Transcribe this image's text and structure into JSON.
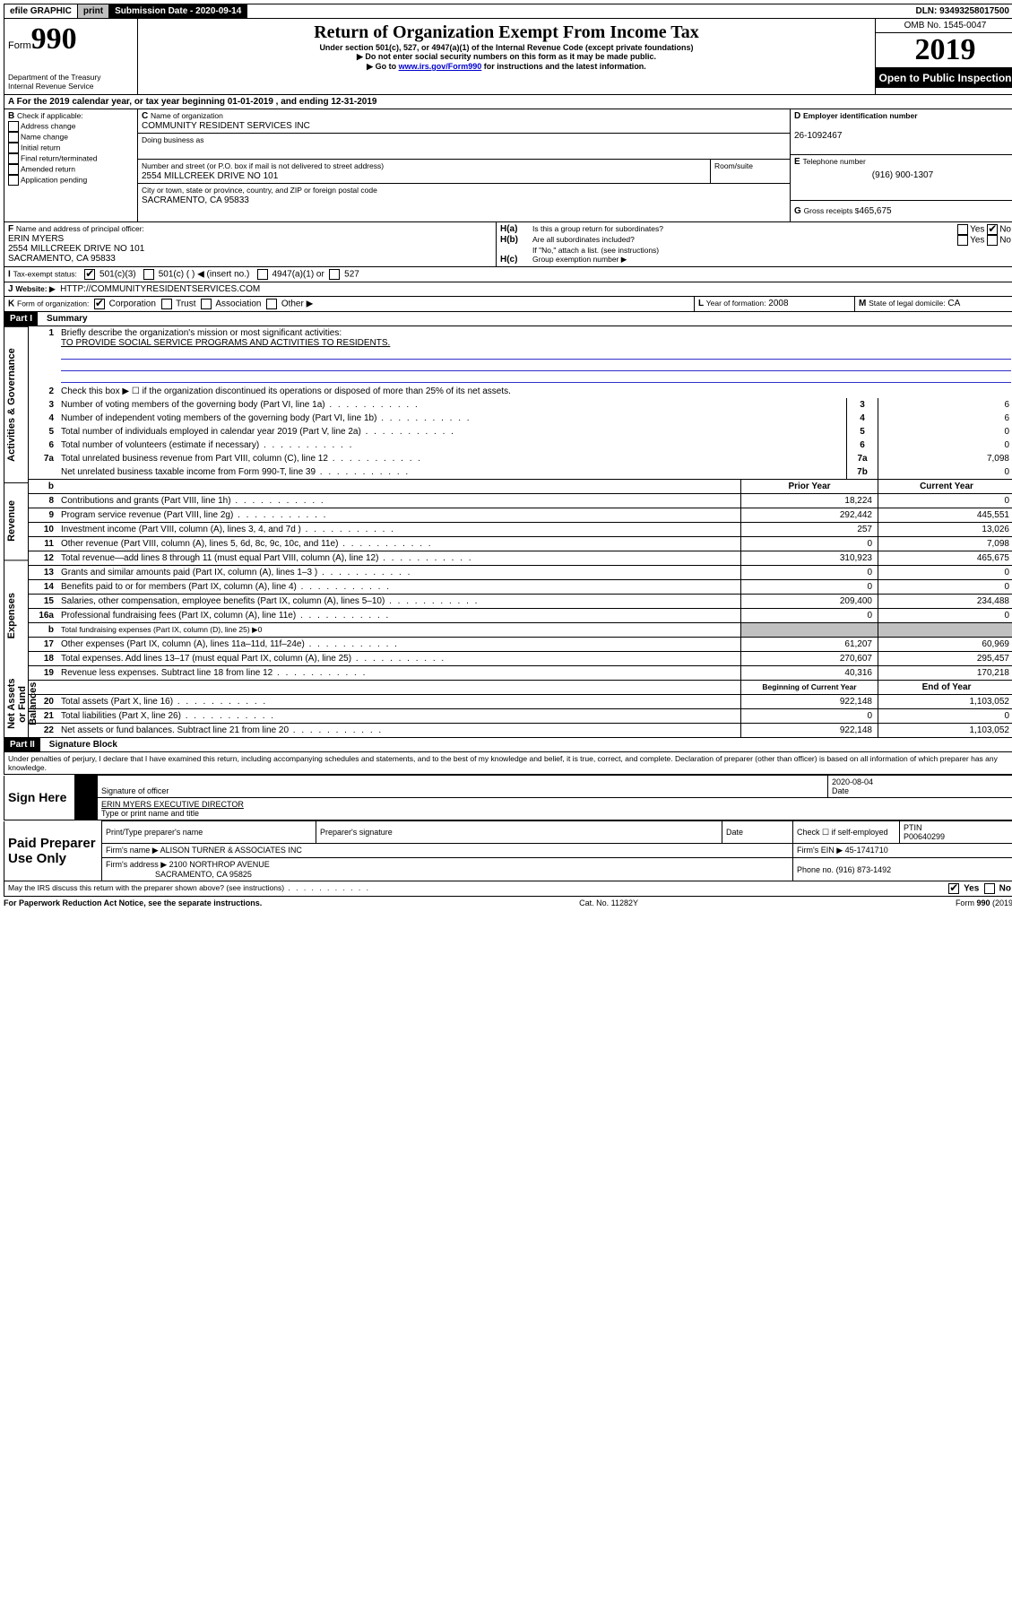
{
  "topbar": {
    "efile": "efile GRAPHIC",
    "print": "print",
    "subdate_label": "Submission Date - 2020-09-14",
    "dln": "DLN: 93493258017500"
  },
  "header": {
    "form_word": "Form",
    "form_num": "990",
    "dept": "Department of the Treasury",
    "irs": "Internal Revenue Service",
    "title": "Return of Organization Exempt From Income Tax",
    "sub1": "Under section 501(c), 527, or 4947(a)(1) of the Internal Revenue Code (except private foundations)",
    "sub2": "▶ Do not enter social security numbers on this form as it may be made public.",
    "sub3a": "▶ Go to ",
    "sub3_link": "www.irs.gov/Form990",
    "sub3b": " for instructions and the latest information.",
    "omb": "OMB No. 1545-0047",
    "year": "2019",
    "open": "Open to Public Inspection"
  },
  "period": {
    "line": "For the 2019 calendar year, or tax year beginning 01-01-2019   , and ending 12-31-2019"
  },
  "B": {
    "label": "Check if applicable:",
    "opts": [
      "Address change",
      "Name change",
      "Initial return",
      "Final return/terminated",
      "Amended return",
      "Application pending"
    ]
  },
  "C": {
    "name_label": "Name of organization",
    "name": "COMMUNITY RESIDENT SERVICES INC",
    "dba_label": "Doing business as",
    "addr_label": "Number and street (or P.O. box if mail is not delivered to street address)",
    "room_label": "Room/suite",
    "addr": "2554 MILLCREEK DRIVE NO 101",
    "city_label": "City or town, state or province, country, and ZIP or foreign postal code",
    "city": "SACRAMENTO, CA  95833"
  },
  "D": {
    "label": "Employer identification number",
    "val": "26-1092467"
  },
  "E": {
    "label": "Telephone number",
    "val": "(916) 900-1307"
  },
  "G": {
    "label": "Gross receipts $",
    "val": "465,675"
  },
  "F": {
    "label": "Name and address of principal officer:",
    "name": "ERIN MYERS",
    "addr1": "2554 MILLCREEK DRIVE NO 101",
    "addr2": "SACRAMENTO, CA  95833"
  },
  "H": {
    "a": "Is this a group return for subordinates?",
    "b": "Are all subordinates included?",
    "b2": "If \"No,\" attach a list. (see instructions)",
    "c": "Group exemption number ▶",
    "yes": "Yes",
    "no": "No"
  },
  "I": {
    "label": "Tax-exempt status:",
    "c1": "501(c)(3)",
    "c2": "501(c) (   ) ◀ (insert no.)",
    "c3": "4947(a)(1) or",
    "c4": "527"
  },
  "J": {
    "label": "Website: ▶",
    "val": "HTTP://COMMUNITYRESIDENTSERVICES.COM"
  },
  "K": {
    "label": "Form of organization:",
    "c1": "Corporation",
    "c2": "Trust",
    "c3": "Association",
    "c4": "Other ▶"
  },
  "L": {
    "label": "Year of formation:",
    "val": "2008"
  },
  "M": {
    "label": "State of legal domicile:",
    "val": "CA"
  },
  "part1": {
    "hdr": "Part I",
    "title": "Summary",
    "vlabels": [
      "Activities & Governance",
      "Revenue",
      "Expenses",
      "Net Assets or Fund Balances"
    ],
    "l1": "Briefly describe the organization's mission or most significant activities:",
    "l1v": "TO PROVIDE SOCIAL SERVICE PROGRAMS AND ACTIVITIES TO RESIDENTS.",
    "l2": "Check this box ▶ ☐  if the organization discontinued its operations or disposed of more than 25% of its net assets.",
    "rows_gov": [
      {
        "n": "3",
        "d": "Number of voting members of the governing body (Part VI, line 1a)",
        "b": "3",
        "v": "6"
      },
      {
        "n": "4",
        "d": "Number of independent voting members of the governing body (Part VI, line 1b)",
        "b": "4",
        "v": "6"
      },
      {
        "n": "5",
        "d": "Total number of individuals employed in calendar year 2019 (Part V, line 2a)",
        "b": "5",
        "v": "0"
      },
      {
        "n": "6",
        "d": "Total number of volunteers (estimate if necessary)",
        "b": "6",
        "v": "0"
      },
      {
        "n": "7a",
        "d": "Total unrelated business revenue from Part VIII, column (C), line 12",
        "b": "7a",
        "v": "7,098"
      },
      {
        "n": "",
        "d": "Net unrelated business taxable income from Form 990-T, line 39",
        "b": "7b",
        "v": "0"
      }
    ],
    "colh": {
      "b": "b",
      "py": "Prior Year",
      "cy": "Current Year"
    },
    "rows_rev": [
      {
        "n": "8",
        "d": "Contributions and grants (Part VIII, line 1h)",
        "py": "18,224",
        "cy": "0"
      },
      {
        "n": "9",
        "d": "Program service revenue (Part VIII, line 2g)",
        "py": "292,442",
        "cy": "445,551"
      },
      {
        "n": "10",
        "d": "Investment income (Part VIII, column (A), lines 3, 4, and 7d )",
        "py": "257",
        "cy": "13,026"
      },
      {
        "n": "11",
        "d": "Other revenue (Part VIII, column (A), lines 5, 6d, 8c, 9c, 10c, and 11e)",
        "py": "0",
        "cy": "7,098"
      },
      {
        "n": "12",
        "d": "Total revenue—add lines 8 through 11 (must equal Part VIII, column (A), line 12)",
        "py": "310,923",
        "cy": "465,675"
      }
    ],
    "rows_exp": [
      {
        "n": "13",
        "d": "Grants and similar amounts paid (Part IX, column (A), lines 1–3 )",
        "py": "0",
        "cy": "0"
      },
      {
        "n": "14",
        "d": "Benefits paid to or for members (Part IX, column (A), line 4)",
        "py": "0",
        "cy": "0"
      },
      {
        "n": "15",
        "d": "Salaries, other compensation, employee benefits (Part IX, column (A), lines 5–10)",
        "py": "209,400",
        "cy": "234,488"
      },
      {
        "n": "16a",
        "d": "Professional fundraising fees (Part IX, column (A), line 11e)",
        "py": "0",
        "cy": "0"
      },
      {
        "n": "b",
        "d": "Total fundraising expenses (Part IX, column (D), line 25) ▶0",
        "py": "",
        "cy": ""
      },
      {
        "n": "17",
        "d": "Other expenses (Part IX, column (A), lines 11a–11d, 11f–24e)",
        "py": "61,207",
        "cy": "60,969"
      },
      {
        "n": "18",
        "d": "Total expenses. Add lines 13–17 (must equal Part IX, column (A), line 25)",
        "py": "270,607",
        "cy": "295,457"
      },
      {
        "n": "19",
        "d": "Revenue less expenses. Subtract line 18 from line 12",
        "py": "40,316",
        "cy": "170,218"
      }
    ],
    "colh2": {
      "py": "Beginning of Current Year",
      "cy": "End of Year"
    },
    "rows_net": [
      {
        "n": "20",
        "d": "Total assets (Part X, line 16)",
        "py": "922,148",
        "cy": "1,103,052"
      },
      {
        "n": "21",
        "d": "Total liabilities (Part X, line 26)",
        "py": "0",
        "cy": "0"
      },
      {
        "n": "22",
        "d": "Net assets or fund balances. Subtract line 21 from line 20",
        "py": "922,148",
        "cy": "1,103,052"
      }
    ]
  },
  "part2": {
    "hdr": "Part II",
    "title": "Signature Block",
    "decl": "Under penalties of perjury, I declare that I have examined this return, including accompanying schedules and statements, and to the best of my knowledge and belief, it is true, correct, and complete. Declaration of preparer (other than officer) is based on all information of which preparer has any knowledge.",
    "sign_here": "Sign Here",
    "sig_of_officer": "Signature of officer",
    "sig_date": "2020-08-04",
    "date": "Date",
    "officer": "ERIN MYERS EXECUTIVE DIRECTOR",
    "type_name": "Type or print name and title",
    "paid": "Paid Preparer Use Only",
    "c_print": "Print/Type preparer's name",
    "c_sig": "Preparer's signature",
    "c_date": "Date",
    "c_check": "Check ☐ if self-employed",
    "c_ptin": "PTIN",
    "ptin": "P00640299",
    "firm_name_l": "Firm's name    ▶",
    "firm_name": "ALISON TURNER & ASSOCIATES INC",
    "firm_ein_l": "Firm's EIN ▶",
    "firm_ein": "45-1741710",
    "firm_addr_l": "Firm's address ▶",
    "firm_addr1": "2100 NORTHROP AVENUE",
    "firm_addr2": "SACRAMENTO, CA  95825",
    "phone_l": "Phone no.",
    "phone": "(916) 873-1492",
    "discuss": "May the IRS discuss this return with the preparer shown above? (see instructions)",
    "yes": "Yes",
    "no": "No"
  },
  "footer": {
    "left": "For Paperwork Reduction Act Notice, see the separate instructions.",
    "mid": "Cat. No. 11282Y",
    "right": "Form 990 (2019)"
  }
}
